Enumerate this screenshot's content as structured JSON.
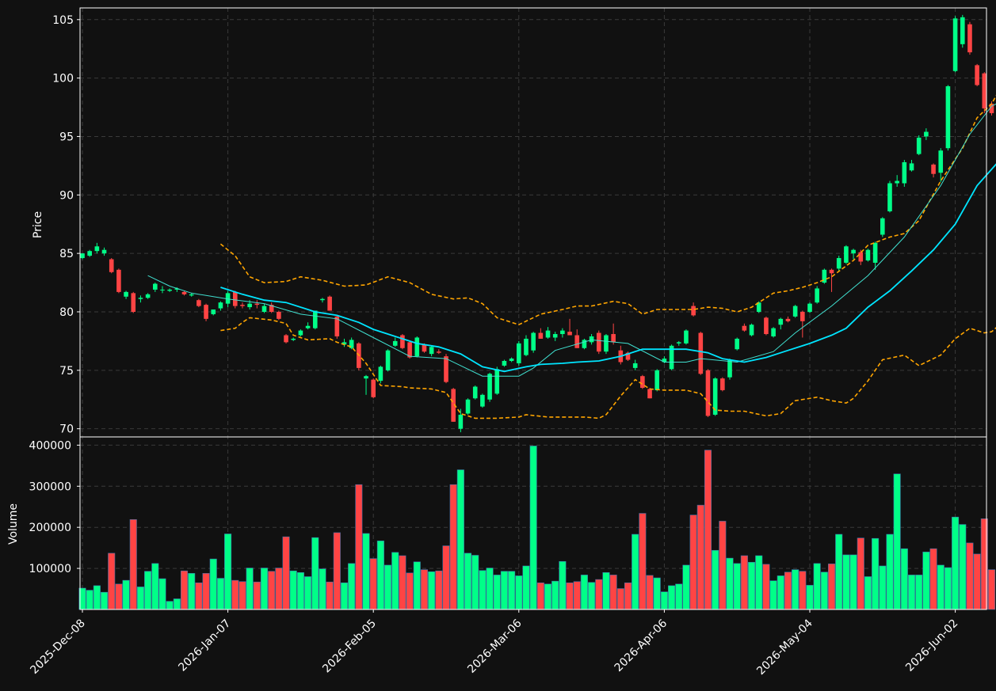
{
  "chart_data": {
    "type": "candlestick",
    "price_axis": {
      "label": "Price",
      "ylim": [
        69.3,
        106
      ],
      "ticks": [
        70,
        75,
        80,
        85,
        90,
        95,
        100,
        105
      ]
    },
    "volume_axis": {
      "label": "Volume",
      "ylim": [
        0,
        420000
      ],
      "ticks": [
        100000,
        200000,
        300000,
        400000
      ],
      "tick_labels": [
        "100000",
        "200000",
        "300000",
        "400000"
      ]
    },
    "x_ticks": [
      {
        "index": 0,
        "label": "2025-Dec-08"
      },
      {
        "index": 20,
        "label": "2026-Jan-07"
      },
      {
        "index": 40,
        "label": "2026-Feb-05"
      },
      {
        "index": 60,
        "label": "2026-Mar-06"
      },
      {
        "index": 80,
        "label": "2026-Apr-06"
      },
      {
        "index": 100,
        "label": "2026-May-04"
      },
      {
        "index": 120,
        "label": "2026-Jun-02"
      }
    ],
    "grid": true,
    "colors": {
      "up": "#00ff88",
      "down": "#ff4444",
      "background": "#111111",
      "grid": "#3a3a3a",
      "ma_fast": "#40e0d0",
      "ma_slow": "#00e5ff",
      "bands": "#ffa500"
    },
    "ohlc": [
      [
        84.6,
        85.0,
        84.5,
        85.0,
        52000
      ],
      [
        84.8,
        85.3,
        84.7,
        85.2,
        47000
      ],
      [
        85.2,
        85.9,
        85.0,
        85.6,
        58000
      ],
      [
        85.0,
        85.5,
        84.8,
        85.3,
        42000
      ],
      [
        84.5,
        84.6,
        83.3,
        83.4,
        137000
      ],
      [
        83.6,
        83.7,
        81.6,
        81.7,
        62000
      ],
      [
        81.3,
        81.8,
        81.1,
        81.7,
        71000
      ],
      [
        81.6,
        81.7,
        79.9,
        80.0,
        219000
      ],
      [
        81.1,
        81.4,
        80.8,
        81.2,
        55000
      ],
      [
        81.2,
        81.6,
        81.1,
        81.5,
        93000
      ],
      [
        81.9,
        82.5,
        81.7,
        82.4,
        112000
      ],
      [
        81.9,
        82.2,
        81.6,
        81.9,
        75000
      ],
      [
        81.8,
        82.0,
        81.7,
        81.9,
        20000
      ],
      [
        81.9,
        82.1,
        81.7,
        82.0,
        26000
      ],
      [
        81.7,
        81.8,
        81.4,
        81.5,
        94000
      ],
      [
        81.4,
        81.6,
        81.3,
        81.5,
        88000
      ],
      [
        81.0,
        81.1,
        80.4,
        80.5,
        65000
      ],
      [
        80.6,
        80.7,
        79.2,
        79.4,
        88000
      ],
      [
        79.8,
        80.2,
        79.7,
        80.2,
        123000
      ],
      [
        80.3,
        80.9,
        80.1,
        80.8,
        76000
      ],
      [
        80.7,
        81.8,
        80.4,
        81.6,
        184000
      ],
      [
        81.7,
        81.8,
        80.3,
        80.5,
        71000
      ],
      [
        80.6,
        80.8,
        80.3,
        80.5,
        68000
      ],
      [
        80.4,
        81.0,
        80.2,
        80.7,
        101000
      ],
      [
        80.7,
        81.0,
        80.3,
        80.6,
        67000
      ],
      [
        80.0,
        80.7,
        79.9,
        80.5,
        101000
      ],
      [
        80.6,
        80.8,
        79.9,
        80.0,
        93000
      ],
      [
        80.0,
        80.1,
        79.3,
        79.4,
        101000
      ],
      [
        78.0,
        78.1,
        77.3,
        77.4,
        177000
      ],
      [
        77.6,
        77.8,
        77.5,
        77.7,
        94000
      ],
      [
        78.0,
        78.5,
        77.9,
        78.4,
        90000
      ],
      [
        78.6,
        79.1,
        78.5,
        78.8,
        80000
      ],
      [
        78.6,
        80.1,
        78.5,
        80.1,
        175000
      ],
      [
        81.0,
        81.2,
        80.8,
        81.1,
        99000
      ],
      [
        81.3,
        81.4,
        80.1,
        80.1,
        67000
      ],
      [
        79.6,
        79.7,
        77.7,
        77.9,
        187000
      ],
      [
        77.2,
        77.7,
        77.0,
        77.4,
        65000
      ],
      [
        76.9,
        77.8,
        76.8,
        77.6,
        112000
      ],
      [
        77.3,
        77.4,
        75.0,
        75.2,
        304000
      ],
      [
        74.3,
        74.6,
        72.9,
        74.5,
        185000
      ],
      [
        74.2,
        74.3,
        72.6,
        72.7,
        124000
      ],
      [
        74.1,
        75.4,
        73.9,
        75.3,
        167000
      ],
      [
        75.0,
        76.8,
        74.9,
        76.7,
        108000
      ],
      [
        77.1,
        77.8,
        77.0,
        77.5,
        139000
      ],
      [
        78.0,
        78.1,
        76.8,
        76.9,
        131000
      ],
      [
        77.4,
        77.5,
        76.0,
        76.1,
        89000
      ],
      [
        76.2,
        77.9,
        76.1,
        77.8,
        116000
      ],
      [
        77.2,
        77.3,
        76.5,
        76.6,
        97000
      ],
      [
        76.4,
        77.1,
        76.2,
        77.0,
        92000
      ],
      [
        76.6,
        76.8,
        76.4,
        76.5,
        94000
      ],
      [
        76.2,
        76.4,
        73.9,
        74.0,
        155000
      ],
      [
        73.4,
        73.5,
        70.6,
        70.6,
        304000
      ],
      [
        70.0,
        71.7,
        69.7,
        71.2,
        340000
      ],
      [
        71.3,
        72.6,
        71.2,
        72.5,
        137000
      ],
      [
        72.6,
        73.7,
        72.5,
        73.6,
        132000
      ],
      [
        71.9,
        73.0,
        71.8,
        72.9,
        95000
      ],
      [
        72.5,
        74.8,
        72.3,
        74.7,
        101000
      ],
      [
        73.0,
        75.3,
        72.9,
        75.1,
        84000
      ],
      [
        75.4,
        75.9,
        75.3,
        75.8,
        93000
      ],
      [
        75.8,
        76.1,
        75.7,
        76.0,
        93000
      ],
      [
        75.6,
        77.5,
        75.4,
        77.3,
        82000
      ],
      [
        76.3,
        78.0,
        76.2,
        77.7,
        106000
      ],
      [
        76.7,
        78.3,
        76.5,
        78.2,
        398000
      ],
      [
        78.2,
        78.6,
        77.7,
        77.7,
        65000
      ],
      [
        77.8,
        78.7,
        77.7,
        78.4,
        62000
      ],
      [
        77.8,
        78.3,
        77.5,
        78.1,
        69000
      ],
      [
        78.1,
        78.6,
        77.8,
        78.4,
        117000
      ],
      [
        78.3,
        79.4,
        78.0,
        78.0,
        65000
      ],
      [
        78.0,
        78.5,
        76.9,
        76.9,
        68000
      ],
      [
        76.9,
        77.7,
        76.8,
        77.6,
        84000
      ],
      [
        77.4,
        78.1,
        77.2,
        77.9,
        66000
      ],
      [
        78.2,
        78.4,
        76.4,
        76.6,
        73000
      ],
      [
        76.6,
        78.1,
        76.4,
        78.0,
        90000
      ],
      [
        78.1,
        79.0,
        77.2,
        77.4,
        84000
      ],
      [
        76.7,
        77.1,
        75.5,
        75.7,
        51000
      ],
      [
        76.5,
        76.6,
        75.8,
        75.9,
        65000
      ],
      [
        75.2,
        75.9,
        75.0,
        75.6,
        183000
      ],
      [
        74.5,
        74.6,
        73.4,
        73.5,
        234000
      ],
      [
        73.4,
        73.5,
        72.6,
        72.6,
        83000
      ],
      [
        73.3,
        75.1,
        73.2,
        75.0,
        77000
      ],
      [
        75.7,
        76.2,
        75.6,
        76.0,
        43000
      ],
      [
        75.1,
        77.2,
        75.0,
        77.1,
        58000
      ],
      [
        77.3,
        77.5,
        77.1,
        77.4,
        62000
      ],
      [
        77.3,
        78.5,
        77.2,
        78.4,
        108000
      ],
      [
        80.5,
        80.8,
        79.6,
        79.7,
        230000
      ],
      [
        78.2,
        78.3,
        74.6,
        74.7,
        254000
      ],
      [
        75.0,
        75.1,
        71.0,
        71.1,
        388000
      ],
      [
        71.2,
        74.4,
        71.1,
        74.3,
        144000
      ],
      [
        74.3,
        74.4,
        73.2,
        73.3,
        215000
      ],
      [
        74.4,
        76.0,
        74.2,
        75.9,
        125000
      ],
      [
        76.8,
        77.8,
        76.7,
        77.7,
        112000
      ],
      [
        78.8,
        79.0,
        78.3,
        78.4,
        131000
      ],
      [
        78.0,
        79.0,
        77.9,
        78.9,
        115000
      ],
      [
        80.0,
        80.9,
        79.9,
        80.8,
        131000
      ],
      [
        79.5,
        79.6,
        78.0,
        78.1,
        110000
      ],
      [
        77.9,
        78.7,
        77.8,
        78.6,
        70000
      ],
      [
        78.9,
        79.5,
        78.5,
        79.4,
        82000
      ],
      [
        79.4,
        79.6,
        79.1,
        79.2,
        91000
      ],
      [
        79.6,
        80.6,
        79.5,
        80.5,
        97000
      ],
      [
        80.0,
        80.1,
        77.8,
        79.2,
        93000
      ],
      [
        80.0,
        80.8,
        79.9,
        80.7,
        59000
      ],
      [
        80.8,
        82.2,
        80.7,
        82.0,
        112000
      ],
      [
        82.5,
        83.7,
        82.4,
        83.6,
        91000
      ],
      [
        83.6,
        83.7,
        81.7,
        83.3,
        111000
      ],
      [
        83.7,
        84.8,
        83.5,
        84.6,
        183000
      ],
      [
        84.2,
        85.7,
        84.1,
        85.6,
        133000
      ],
      [
        85.0,
        85.4,
        84.5,
        85.3,
        133000
      ],
      [
        85.1,
        85.3,
        84.0,
        84.3,
        174000
      ],
      [
        84.4,
        85.4,
        84.3,
        85.3,
        80000
      ],
      [
        84.2,
        86.0,
        83.6,
        85.9,
        173000
      ],
      [
        86.6,
        88.1,
        86.4,
        88.0,
        106000
      ],
      [
        88.6,
        91.2,
        88.5,
        91.0,
        183000
      ],
      [
        91.0,
        91.7,
        90.7,
        91.2,
        330000
      ],
      [
        91.0,
        93.0,
        90.7,
        92.8,
        148000
      ],
      [
        92.1,
        93.0,
        92.0,
        92.7,
        84000
      ],
      [
        93.5,
        95.1,
        93.4,
        94.9,
        84000
      ],
      [
        95.0,
        95.7,
        94.7,
        95.4,
        140000
      ],
      [
        92.6,
        92.7,
        91.5,
        91.8,
        148000
      ],
      [
        91.9,
        94.0,
        91.1,
        93.8,
        108000
      ],
      [
        94.0,
        99.4,
        93.8,
        99.3,
        102000
      ],
      [
        100.6,
        105.3,
        100.5,
        105.1,
        225000
      ],
      [
        102.9,
        105.4,
        102.6,
        105.2,
        207000
      ],
      [
        104.6,
        104.8,
        102.0,
        102.2,
        162000
      ],
      [
        101.1,
        101.2,
        99.3,
        99.4,
        135000
      ],
      [
        100.4,
        100.5,
        97.0,
        97.4,
        221000
      ],
      [
        97.8,
        98.0,
        96.8,
        97.0,
        97000
      ]
    ],
    "ma_fast": [
      [
        9,
        83.1
      ],
      [
        12,
        82.2
      ],
      [
        15,
        81.6
      ],
      [
        20,
        81.1
      ],
      [
        25,
        80.7
      ],
      [
        30,
        79.8
      ],
      [
        35,
        79.4
      ],
      [
        40,
        77.8
      ],
      [
        45,
        76.2
      ],
      [
        50,
        76.0
      ],
      [
        55,
        74.5
      ],
      [
        60,
        74.5
      ],
      [
        62,
        75.2
      ],
      [
        65,
        76.7
      ],
      [
        70,
        77.6
      ],
      [
        75,
        77.3
      ],
      [
        80,
        75.7
      ],
      [
        83,
        75.7
      ],
      [
        85,
        76.0
      ],
      [
        90,
        75.7
      ],
      [
        95,
        76.6
      ],
      [
        98,
        78.2
      ],
      [
        103,
        80.5
      ],
      [
        108,
        83.1
      ],
      [
        113,
        86.4
      ],
      [
        118,
        90.8
      ],
      [
        122,
        95.2
      ],
      [
        125,
        97.6
      ],
      [
        128,
        98.5
      ],
      [
        130,
        98.9
      ]
    ],
    "ma_slow": [
      [
        19,
        82.1
      ],
      [
        22,
        81.5
      ],
      [
        25,
        81.0
      ],
      [
        28,
        80.8
      ],
      [
        32,
        80.0
      ],
      [
        35,
        79.7
      ],
      [
        38,
        79.1
      ],
      [
        40,
        78.5
      ],
      [
        43,
        77.9
      ],
      [
        46,
        77.3
      ],
      [
        49,
        77.0
      ],
      [
        52,
        76.4
      ],
      [
        55,
        75.3
      ],
      [
        58,
        74.9
      ],
      [
        61,
        75.3
      ],
      [
        63,
        75.5
      ],
      [
        66,
        75.6
      ],
      [
        68,
        75.7
      ],
      [
        71,
        75.8
      ],
      [
        74,
        76.2
      ],
      [
        77,
        76.8
      ],
      [
        80,
        76.8
      ],
      [
        83,
        76.8
      ],
      [
        86,
        76.5
      ],
      [
        88,
        76.0
      ],
      [
        91,
        75.7
      ],
      [
        94,
        76.1
      ],
      [
        97,
        76.7
      ],
      [
        100,
        77.3
      ],
      [
        103,
        78.0
      ],
      [
        105,
        78.6
      ],
      [
        108,
        80.4
      ],
      [
        111,
        81.8
      ],
      [
        114,
        83.5
      ],
      [
        117,
        85.3
      ],
      [
        120,
        87.5
      ],
      [
        123,
        90.8
      ],
      [
        126,
        92.9
      ],
      [
        130,
        94.2
      ]
    ],
    "upper_band": [
      [
        19,
        85.8
      ],
      [
        21,
        84.8
      ],
      [
        23,
        83.0
      ],
      [
        25,
        82.5
      ],
      [
        28,
        82.6
      ],
      [
        30,
        83.0
      ],
      [
        33,
        82.7
      ],
      [
        36,
        82.2
      ],
      [
        39,
        82.3
      ],
      [
        42,
        83.0
      ],
      [
        45,
        82.5
      ],
      [
        48,
        81.5
      ],
      [
        51,
        81.1
      ],
      [
        53,
        81.2
      ],
      [
        55,
        80.7
      ],
      [
        57,
        79.5
      ],
      [
        60,
        78.9
      ],
      [
        63,
        79.8
      ],
      [
        66,
        80.2
      ],
      [
        68,
        80.5
      ],
      [
        70,
        80.5
      ],
      [
        73,
        80.9
      ],
      [
        75,
        80.7
      ],
      [
        77,
        79.8
      ],
      [
        79,
        80.2
      ],
      [
        82,
        80.2
      ],
      [
        84,
        80.2
      ],
      [
        86,
        80.4
      ],
      [
        88,
        80.3
      ],
      [
        90,
        80.0
      ],
      [
        92,
        80.4
      ],
      [
        95,
        81.6
      ],
      [
        97,
        81.8
      ],
      [
        99,
        82.1
      ],
      [
        101,
        82.5
      ],
      [
        103,
        83.0
      ],
      [
        106,
        84.4
      ],
      [
        108,
        85.7
      ],
      [
        111,
        86.4
      ],
      [
        113,
        86.7
      ],
      [
        115,
        87.8
      ],
      [
        118,
        91.2
      ],
      [
        121,
        94.0
      ],
      [
        123,
        96.6
      ],
      [
        125,
        97.8
      ],
      [
        127,
        100.0
      ],
      [
        129,
        104.2
      ],
      [
        131,
        106.0
      ]
    ],
    "lower_band": [
      [
        19,
        78.4
      ],
      [
        21,
        78.6
      ],
      [
        22,
        79.1
      ],
      [
        23,
        79.5
      ],
      [
        26,
        79.3
      ],
      [
        28,
        79.0
      ],
      [
        29,
        78.0
      ],
      [
        31,
        77.6
      ],
      [
        34,
        77.7
      ],
      [
        35,
        77.4
      ],
      [
        37,
        77.0
      ],
      [
        39,
        75.6
      ],
      [
        41,
        73.7
      ],
      [
        44,
        73.6
      ],
      [
        45,
        73.5
      ],
      [
        48,
        73.4
      ],
      [
        50,
        73.1
      ],
      [
        52,
        71.3
      ],
      [
        54,
        70.9
      ],
      [
        57,
        70.9
      ],
      [
        60,
        71.0
      ],
      [
        61,
        71.2
      ],
      [
        64,
        71.0
      ],
      [
        67,
        71.0
      ],
      [
        69,
        71.0
      ],
      [
        71,
        70.9
      ],
      [
        72,
        71.2
      ],
      [
        74,
        72.8
      ],
      [
        76,
        74.2
      ],
      [
        78,
        73.4
      ],
      [
        80,
        73.3
      ],
      [
        83,
        73.3
      ],
      [
        85,
        73.0
      ],
      [
        87,
        71.6
      ],
      [
        89,
        71.5
      ],
      [
        91,
        71.5
      ],
      [
        94,
        71.1
      ],
      [
        96,
        71.3
      ],
      [
        98,
        72.4
      ],
      [
        101,
        72.7
      ],
      [
        103,
        72.4
      ],
      [
        105,
        72.2
      ],
      [
        106,
        72.6
      ],
      [
        108,
        74.1
      ],
      [
        110,
        75.9
      ],
      [
        113,
        76.3
      ],
      [
        115,
        75.4
      ],
      [
        118,
        76.3
      ],
      [
        120,
        77.7
      ],
      [
        122,
        78.6
      ],
      [
        124,
        78.2
      ],
      [
        125,
        78.3
      ],
      [
        127,
        79.4
      ],
      [
        130,
        81.8
      ]
    ]
  }
}
